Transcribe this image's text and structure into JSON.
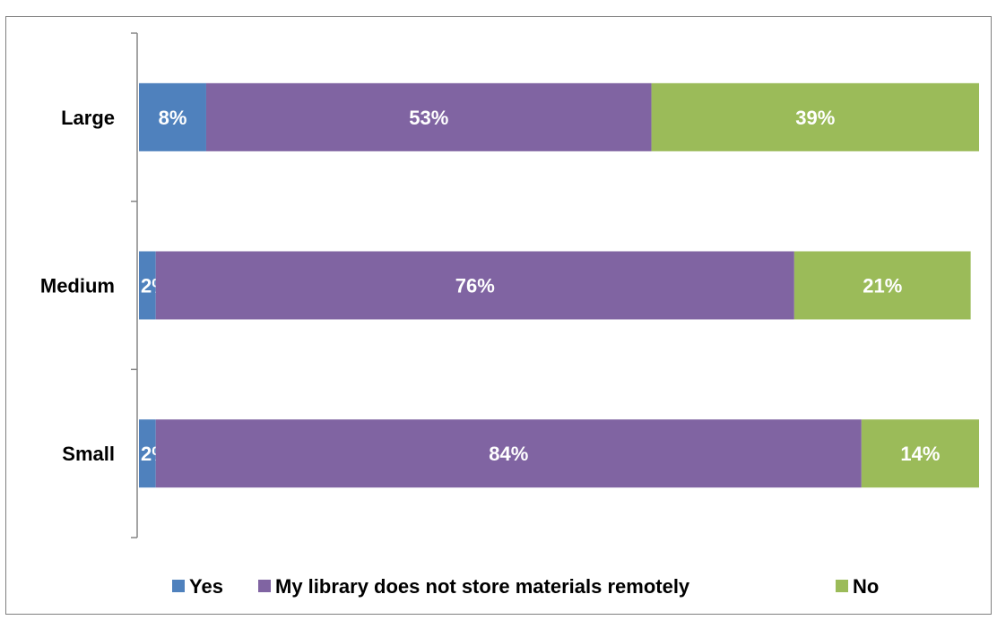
{
  "chart_data": {
    "type": "bar",
    "orientation": "horizontal",
    "stacked": true,
    "title": "",
    "categories": [
      "Large",
      "Medium",
      "Small"
    ],
    "series": [
      {
        "name": "Yes",
        "values": [
          8,
          2,
          2
        ],
        "labels": [
          "8%",
          "2%",
          "2%"
        ]
      },
      {
        "name": "My library does not store materials remotely",
        "values": [
          53,
          76,
          84
        ],
        "labels": [
          "53%",
          "76%",
          "84%"
        ]
      },
      {
        "name": "No",
        "values": [
          39,
          21,
          14
        ],
        "labels": [
          "39%",
          "21%",
          "14%"
        ]
      }
    ],
    "xlim": [
      0,
      100
    ],
    "grid": false,
    "legend": "bottom",
    "colors": [
      "#4f81bd",
      "#8064a2",
      "#9bbb59"
    ]
  }
}
